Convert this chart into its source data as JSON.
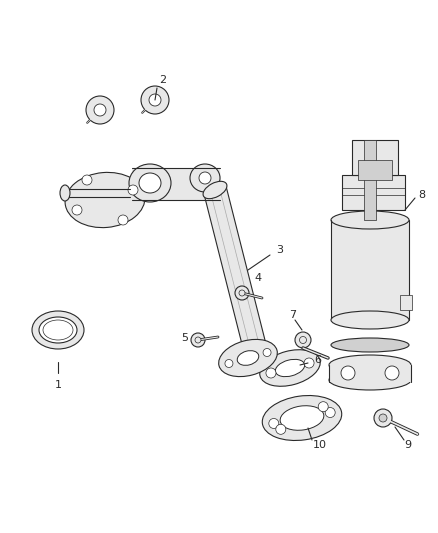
{
  "background_color": "#ffffff",
  "line_color": "#2a2a2a",
  "label_color": "#2a2a2a",
  "fig_width": 4.38,
  "fig_height": 5.33,
  "dpi": 100,
  "line_width": 0.8,
  "fill_light": "#e8e8e8",
  "fill_mid": "#d0d0d0",
  "fill_dark": "#b8b8b8"
}
